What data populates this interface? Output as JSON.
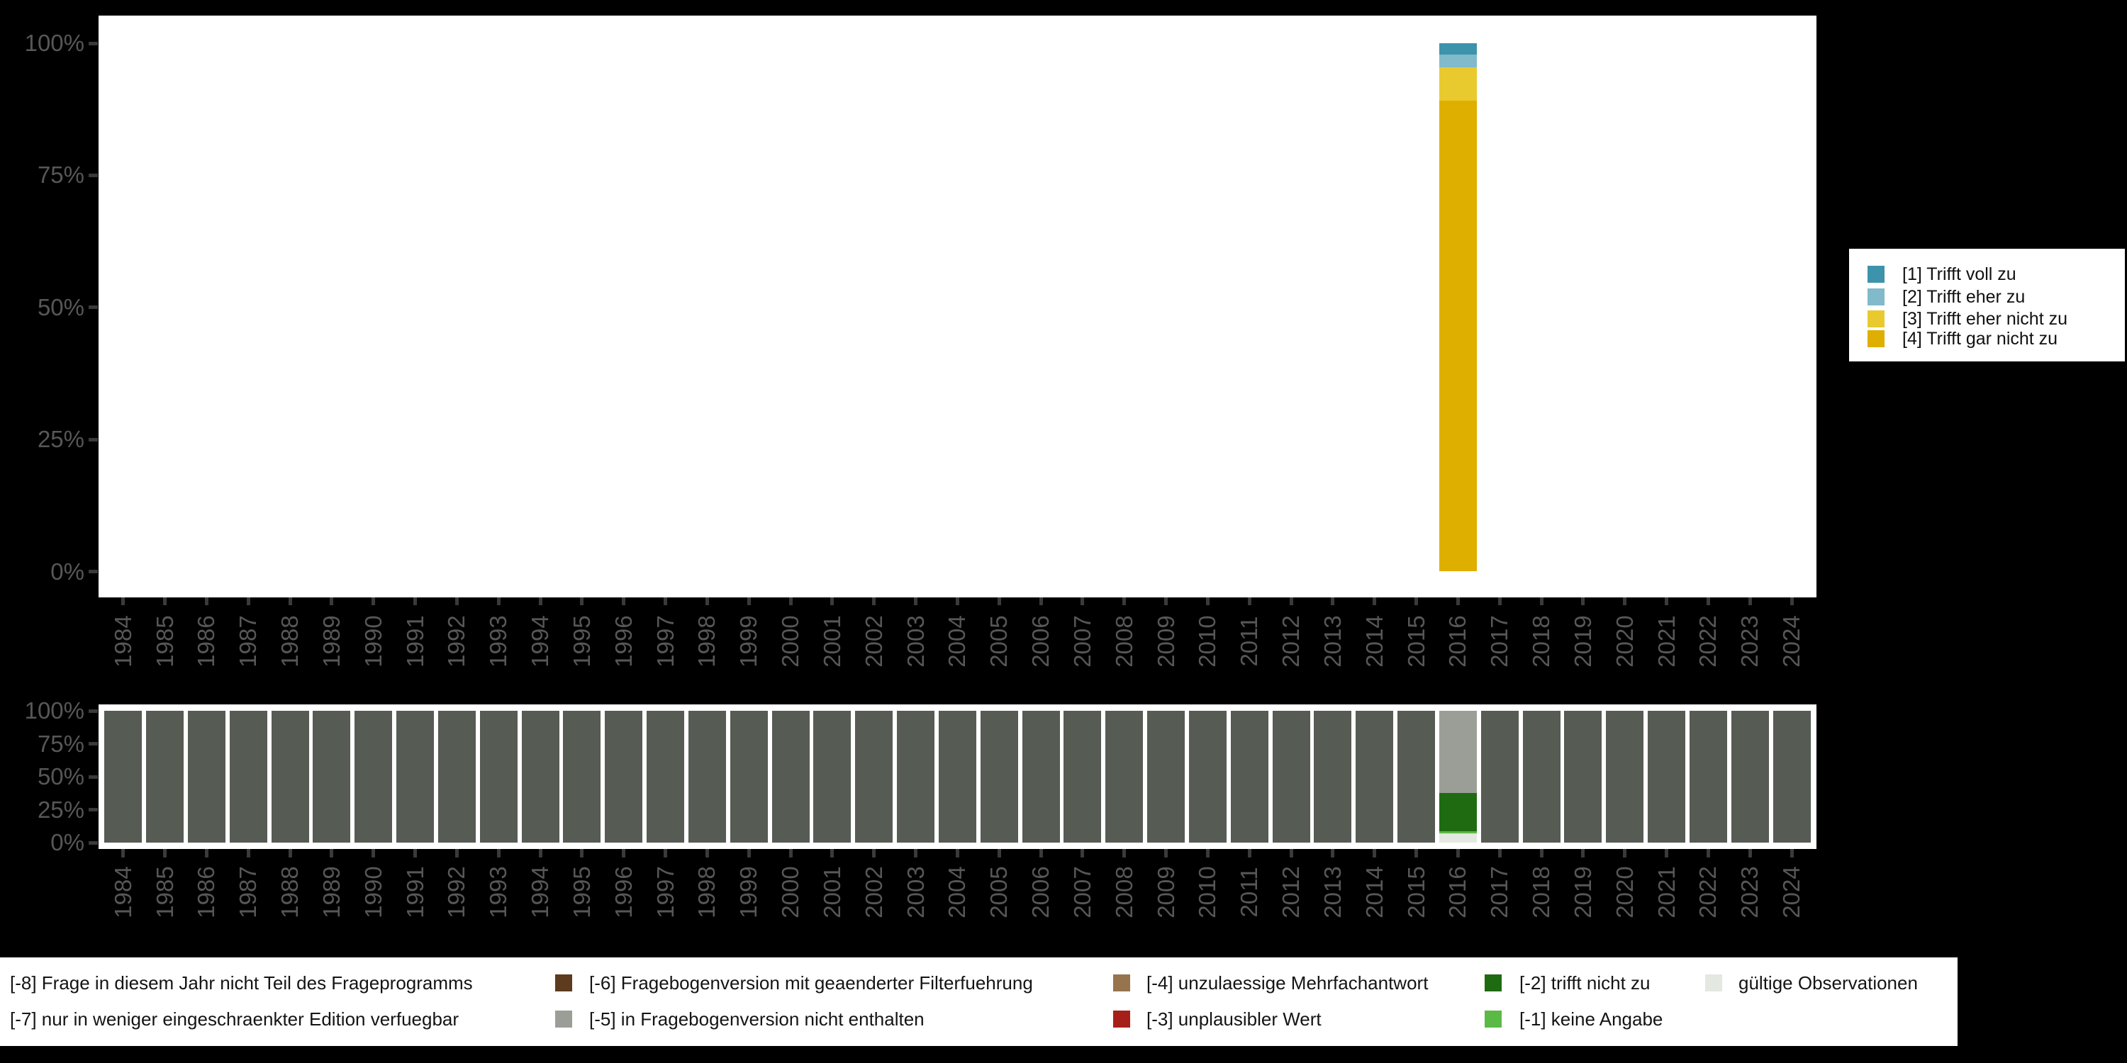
{
  "figure": {
    "background": "#000000",
    "plot_background": "#ffffff",
    "axis_text_color": "#575757",
    "tick_color": "#3a3a3a"
  },
  "chart_data": [
    {
      "type": "bar",
      "stacked": true,
      "title": "",
      "xlabel": "",
      "ylabel": "",
      "ylim": [
        0,
        100
      ],
      "grid": false,
      "legend_position": "right",
      "categories": [
        1984,
        1985,
        1986,
        1987,
        1988,
        1989,
        1990,
        1991,
        1992,
        1993,
        1994,
        1995,
        1996,
        1997,
        1998,
        1999,
        2000,
        2001,
        2002,
        2003,
        2004,
        2005,
        2006,
        2007,
        2008,
        2009,
        2010,
        2011,
        2012,
        2013,
        2014,
        2015,
        2016,
        2017,
        2018,
        2019,
        2020,
        2021,
        2022,
        2023,
        2024
      ],
      "yticks": [
        "0%",
        "25%",
        "50%",
        "75%",
        "100%"
      ],
      "series": [
        {
          "name": "[1] Trifft voll zu",
          "color": "#3C93AB",
          "default": 0,
          "values_by_year": {
            "2016": 2.1
          }
        },
        {
          "name": "[2] Trifft eher zu",
          "color": "#81BACA",
          "default": 0,
          "values_by_year": {
            "2016": 2.4
          }
        },
        {
          "name": "[3] Trifft eher nicht zu",
          "color": "#E8CA2F",
          "default": 0,
          "values_by_year": {
            "2016": 6.4
          }
        },
        {
          "name": "[4] Trifft gar nicht zu",
          "color": "#DFAF00",
          "default": 0,
          "values_by_year": {
            "2016": 89.1
          }
        }
      ]
    },
    {
      "type": "bar",
      "stacked": true,
      "title": "",
      "xlabel": "",
      "ylabel": "",
      "ylim": [
        0,
        100
      ],
      "grid": false,
      "legend_position": "bottom",
      "categories": [
        1984,
        1985,
        1986,
        1987,
        1988,
        1989,
        1990,
        1991,
        1992,
        1993,
        1994,
        1995,
        1996,
        1997,
        1998,
        1999,
        2000,
        2001,
        2002,
        2003,
        2004,
        2005,
        2006,
        2007,
        2008,
        2009,
        2010,
        2011,
        2012,
        2013,
        2014,
        2015,
        2016,
        2017,
        2018,
        2019,
        2020,
        2021,
        2022,
        2023,
        2024
      ],
      "yticks": [
        "0%",
        "25%",
        "50%",
        "75%",
        "100%"
      ],
      "series": [
        {
          "name": "[-8] Frage in diesem Jahr nicht Teil des Frageprogramms",
          "color": "#565B54",
          "default": 100,
          "values_by_year": {
            "2016": 0
          }
        },
        {
          "name": "[-5] in Fragebogenversion nicht enthalten",
          "color": "#9B9E96",
          "default": 0,
          "values_by_year": {
            "2016": 62.5
          }
        },
        {
          "name": "[-2] trifft nicht zu",
          "color": "#1E6B12",
          "default": 0,
          "values_by_year": {
            "2016": 29
          }
        },
        {
          "name": "[-1] keine Angabe",
          "color": "#5BBA46",
          "default": 0,
          "values_by_year": {
            "2016": 1.5
          }
        },
        {
          "name": "gültige Observationen",
          "color": "#E3E8E0",
          "default": 0,
          "values_by_year": {
            "2016": 7
          }
        }
      ]
    }
  ],
  "right_legend": {
    "items": [
      {
        "label": "[1] Trifft voll zu",
        "color": "#3C93AB"
      },
      {
        "label": "[2] Trifft eher zu",
        "color": "#81BACA"
      },
      {
        "label": "[3] Trifft eher nicht zu",
        "color": "#E8CA2F"
      },
      {
        "label": "[4] Trifft gar nicht zu",
        "color": "#DFAF00"
      }
    ]
  },
  "bottom_legend": {
    "row1": [
      {
        "label": "[-8] Frage in diesem Jahr nicht Teil des Frageprogramms",
        "color": null
      },
      {
        "label": "[-6] Fragebogenversion mit geaenderter Filterfuehrung",
        "color": "#5C3B1E"
      },
      {
        "label": "[-4] unzulaessige Mehrfachantwort",
        "color": "#96744D"
      },
      {
        "label": "[-2] trifft nicht zu",
        "color": "#1E6B12"
      },
      {
        "label": "gültige Observationen",
        "color": "#E3E8E0"
      }
    ],
    "row2": [
      {
        "label": "[-7] nur in weniger eingeschraenkter Edition verfuegbar",
        "color": null
      },
      {
        "label": "[-5] in Fragebogenversion nicht enthalten",
        "color": "#9B9E96"
      },
      {
        "label": "[-3] unplausibler Wert",
        "color": "#A62019"
      },
      {
        "label": "[-1] keine Angabe",
        "color": "#5BBA46"
      }
    ]
  }
}
